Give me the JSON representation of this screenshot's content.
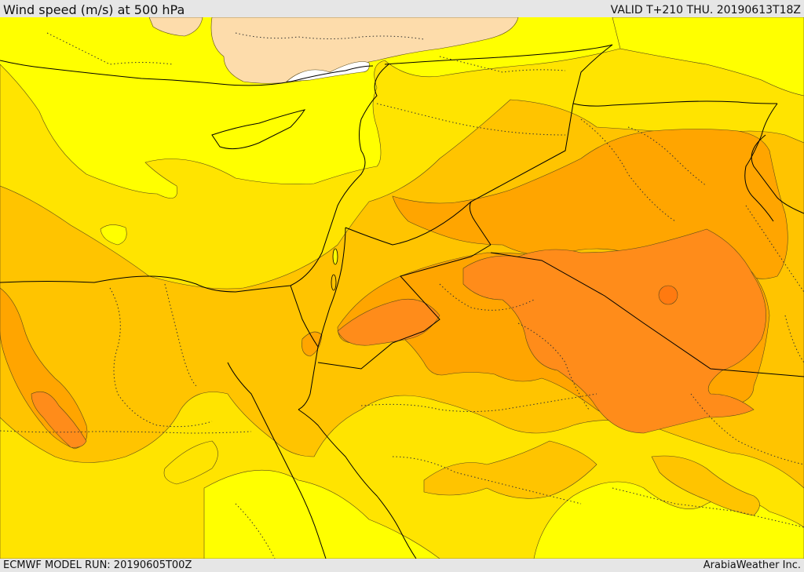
{
  "header": {
    "title": "Wind speed (m/s) at 500 hPa",
    "valid": "VALID T+210 THU. 20190613T18Z"
  },
  "footer": {
    "model_run": "ECMWF MODEL RUN: 20190605T00Z",
    "credit": "ArabiaWeather Inc."
  },
  "colors": {
    "band_low": "#ffff00",
    "band_1": "#ffe400",
    "band_2": "#ffc400",
    "band_3": "#ffa500",
    "band_4": "#ff8c1a",
    "land_calm": "#fddcab",
    "sea_calm": "#ffffff",
    "border": "#000000",
    "internal_border": "#333333",
    "contour": "#5a4a1a"
  }
}
